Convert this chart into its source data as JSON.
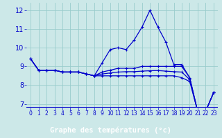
{
  "title": "Graphe des températures (°c)",
  "bg_color": "#cce8e8",
  "grid_color": "#99cccc",
  "line_color": "#0000cc",
  "label_bg": "#0000cc",
  "label_fg": "#ffffff",
  "xlim": [
    -0.5,
    23.5
  ],
  "ylim": [
    6.8,
    12.4
  ],
  "yticks": [
    7,
    8,
    9,
    10,
    11,
    12
  ],
  "xticks": [
    0,
    1,
    2,
    3,
    4,
    5,
    6,
    7,
    8,
    9,
    10,
    11,
    12,
    13,
    14,
    15,
    16,
    17,
    18,
    19,
    20,
    21,
    22,
    23
  ],
  "lines": [
    [
      9.4,
      8.8,
      8.8,
      8.8,
      8.7,
      8.7,
      8.7,
      8.6,
      8.5,
      9.2,
      9.9,
      10.0,
      9.9,
      10.4,
      11.1,
      12.0,
      11.1,
      10.3,
      9.1,
      9.1,
      8.4,
      6.6,
      6.6,
      7.6
    ],
    [
      9.4,
      8.8,
      8.8,
      8.8,
      8.7,
      8.7,
      8.7,
      8.6,
      8.5,
      8.7,
      8.8,
      8.9,
      8.9,
      8.9,
      9.0,
      9.0,
      9.0,
      9.0,
      9.0,
      9.0,
      8.4,
      6.6,
      6.6,
      7.6
    ],
    [
      9.4,
      8.8,
      8.8,
      8.8,
      8.7,
      8.7,
      8.7,
      8.6,
      8.5,
      8.6,
      8.65,
      8.7,
      8.72,
      8.72,
      8.75,
      8.77,
      8.78,
      8.75,
      8.72,
      8.7,
      8.3,
      6.6,
      6.6,
      7.6
    ],
    [
      9.4,
      8.8,
      8.8,
      8.8,
      8.7,
      8.7,
      8.7,
      8.6,
      8.5,
      8.5,
      8.5,
      8.5,
      8.5,
      8.5,
      8.5,
      8.5,
      8.5,
      8.5,
      8.5,
      8.4,
      8.2,
      6.6,
      6.6,
      7.6
    ]
  ]
}
